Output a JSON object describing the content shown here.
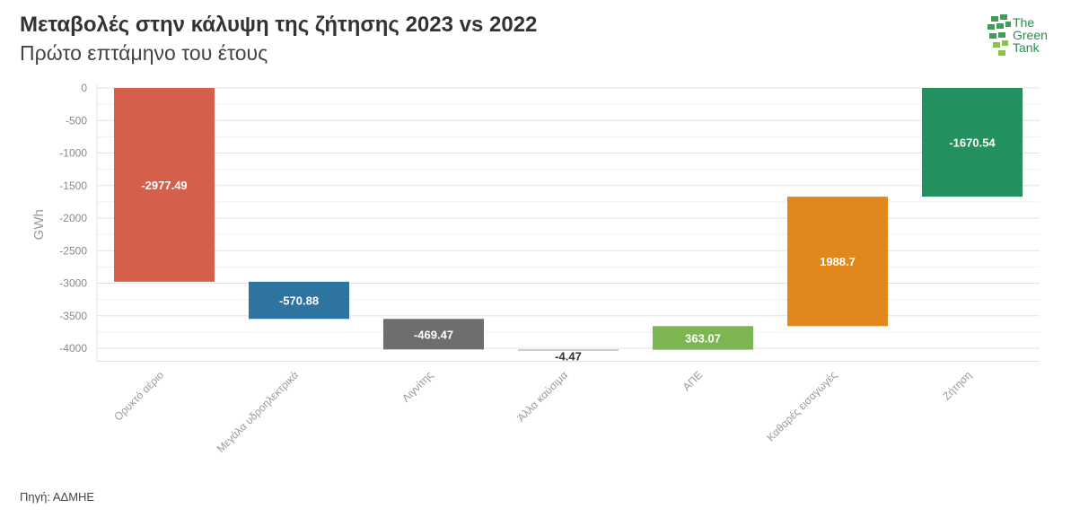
{
  "header": {
    "title": "Μεταβολές στην κάλυψη της ζήτησης 2023 vs 2022",
    "subtitle": "Πρώτο επτάμηνο του έτους"
  },
  "logo": {
    "line1": "The",
    "line2": "Green",
    "line3": "Tank"
  },
  "footer": {
    "source": "Πηγή: ΑΔΜΗΕ"
  },
  "colors": {
    "gas": "#d45f4a",
    "hydro": "#2e74a0",
    "lignite": "#6e6e6e",
    "other": "#bdbdbd",
    "res": "#7db553",
    "imports": "#e2871c",
    "demand": "#22915f",
    "grid": "#e3e3e3"
  },
  "chart_data": {
    "type": "waterfall",
    "ylabel": "GWh",
    "ylim": [
      -4200,
      0
    ],
    "yticks": [
      0,
      -500,
      -1000,
      -1500,
      -2000,
      -2500,
      -3000,
      -3500,
      -4000
    ],
    "categories": [
      "Ορυκτό αέριο",
      "Μεγάλα υδροηλεκτρικά",
      "Λιγνίτης",
      "Άλλα καύσιμα",
      "ΑΠΕ",
      "Καθαρές εισαγωγές",
      "Ζήτηση"
    ],
    "values": [
      -2977.49,
      -570.88,
      -469.47,
      -4.47,
      363.07,
      1988.7,
      -1670.54
    ],
    "labels": [
      "-2977.49",
      "-570.88",
      "-469.47",
      "-4.47",
      "363.07",
      "1988.7",
      "-1670.54"
    ],
    "total_index": 6,
    "color_keys": [
      "gas",
      "hydro",
      "lignite",
      "other",
      "res",
      "imports",
      "demand"
    ]
  }
}
